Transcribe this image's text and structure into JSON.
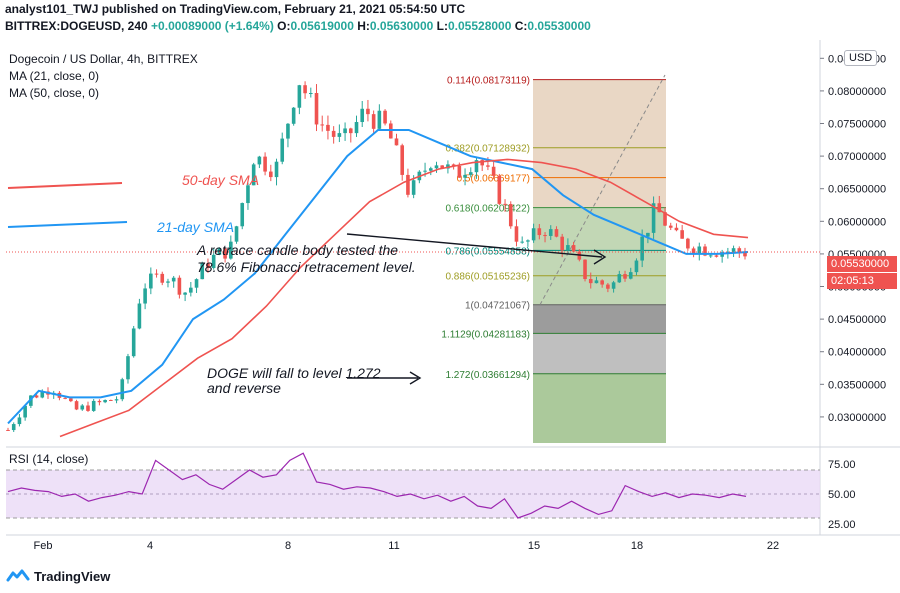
{
  "header": {
    "attribution": "analyst101_TWJ published on TradingView.com, February 21, 2021 05:54:50 UTC",
    "symbol": "BITTREX:DOGEUSD, 240",
    "change": "+0.00089000 (+1.64%)",
    "o_label": "O:",
    "o_value": "0.05619000",
    "h_label": "H:",
    "h_value": "0.05630000",
    "l_label": "L:",
    "l_value": "0.05528000",
    "c_label": "C:",
    "c_value": "0.05530000"
  },
  "legend": {
    "title": "Dogecoin / US Dollar, 4h, BITTREX",
    "ma21": "MA (21, close, 0)",
    "ma50": "MA (50, close, 0)"
  },
  "currency_button": "USD",
  "price_tag": {
    "price": "0.05530000",
    "countdown": "02:05:13"
  },
  "footer": {
    "brand": "TradingView"
  },
  "colors": {
    "up": "#26a69a",
    "down": "#ef5350",
    "ma21": "#2196f3",
    "ma50": "#ef5350",
    "fib_top": "#d7b796",
    "fib_mid": "#8fb779",
    "fib_low": "#4a4a4a",
    "rsi_band": "#ead9f6",
    "rsi_line": "#9c27b0"
  },
  "chart_data": [
    {
      "type": "candlestick",
      "title": "Dogecoin / US Dollar, 4h, BITTREX",
      "x_ticks": [
        "Feb",
        "4",
        "8",
        "11",
        "15",
        "18",
        "22"
      ],
      "y_ticks": [
        0.03,
        0.035,
        0.04,
        0.045,
        0.05,
        0.055,
        0.06,
        0.065,
        0.07,
        0.075,
        0.08,
        0.085
      ],
      "y_tick_labels": [
        "0.03000000",
        "0.03500000",
        "0.04000000",
        "0.04500000",
        "0.05000000",
        "0.05500000",
        "0.06000000",
        "0.06500000",
        "0.07000000",
        "0.07500000",
        "0.08000000",
        "0.08500000"
      ],
      "ylim": [
        0.026,
        0.0875
      ],
      "days": [
        0,
        1,
        2,
        3,
        4,
        5,
        6,
        7,
        8,
        9,
        10,
        11,
        12,
        13,
        14,
        15,
        16,
        17,
        18,
        19,
        20,
        21
      ],
      "close_path": [
        0.028,
        0.033,
        0.0345,
        0.031,
        0.032,
        0.033,
        0.05,
        0.052,
        0.049,
        0.054,
        0.056,
        0.07,
        0.068,
        0.082,
        0.075,
        0.072,
        0.077,
        0.074,
        0.064,
        0.07,
        0.067,
        0.07,
        0.064,
        0.056,
        0.059,
        0.056,
        0.051,
        0.05,
        0.054,
        0.062,
        0.057,
        0.056,
        0.0555,
        0.0553
      ],
      "ma21": [
        0.029,
        0.034,
        0.033,
        0.033,
        0.034,
        0.038,
        0.045,
        0.048,
        0.052,
        0.058,
        0.064,
        0.07,
        0.074,
        0.074,
        0.072,
        0.07,
        0.069,
        0.068,
        0.064,
        0.061,
        0.059,
        0.057,
        0.055,
        0.055,
        0.0553
      ],
      "ma50": [
        0.027,
        0.029,
        0.031,
        0.035,
        0.039,
        0.042,
        0.047,
        0.053,
        0.058,
        0.063,
        0.066,
        0.068,
        0.069,
        0.0695,
        0.069,
        0.068,
        0.066,
        0.063,
        0.06,
        0.058,
        0.0575
      ],
      "fib_levels": [
        {
          "level": "0.114",
          "price": 0.08173119,
          "label": "0.114(0.08173119)"
        },
        {
          "level": "0.382",
          "price": 0.07128932,
          "label": "0.382(0.07128932)"
        },
        {
          "level": "0.5",
          "price": 0.06669177,
          "label": "0.5(0.06669177)"
        },
        {
          "level": "0.618",
          "price": 0.06209422,
          "label": "0.618(0.06209422)"
        },
        {
          "level": "0.786",
          "price": 0.05554858,
          "label": "0.786(0.05554858)"
        },
        {
          "level": "0.886",
          "price": 0.05165236,
          "label": "0.886(0.05165236)"
        },
        {
          "level": "1",
          "price": 0.04721067,
          "label": "1(0.04721067)"
        },
        {
          "level": "1.1129",
          "price": 0.04281183,
          "label": "1.1129(0.04281183)"
        },
        {
          "level": "1.272",
          "price": 0.03661294,
          "label": "1.272(0.03661294)"
        }
      ],
      "annotations": [
        {
          "text": "50-day SMA",
          "color": "#ef5350"
        },
        {
          "text": "21-day SMA",
          "color": "#2196f3"
        },
        {
          "text": "A retrace candle body tested the",
          "color": "#131722"
        },
        {
          "text": "78.6% Fibonacci retracement level.",
          "color": "#131722"
        },
        {
          "text": "DOGE will fall to level 1.272",
          "color": "#131722"
        },
        {
          "text": "and reverse",
          "color": "#131722"
        }
      ],
      "last_price": 0.0553
    },
    {
      "type": "line",
      "title": "RSI (14, close)",
      "y_ticks": [
        25,
        50,
        75
      ],
      "y_tick_labels": [
        "25.00",
        "50.00",
        "75.00"
      ],
      "ylim": [
        20,
        85
      ],
      "band": [
        30,
        70
      ],
      "values": [
        52,
        55,
        53,
        52,
        48,
        50,
        44,
        47,
        49,
        52,
        50,
        78,
        70,
        62,
        66,
        58,
        54,
        62,
        70,
        64,
        66,
        78,
        84,
        60,
        58,
        54,
        56,
        55,
        52,
        48,
        50,
        46,
        49,
        44,
        48,
        40,
        38,
        46,
        30,
        34,
        40,
        38,
        44,
        38,
        33,
        36,
        57,
        52,
        48,
        51,
        47,
        50,
        49,
        47,
        50,
        48
      ]
    }
  ]
}
